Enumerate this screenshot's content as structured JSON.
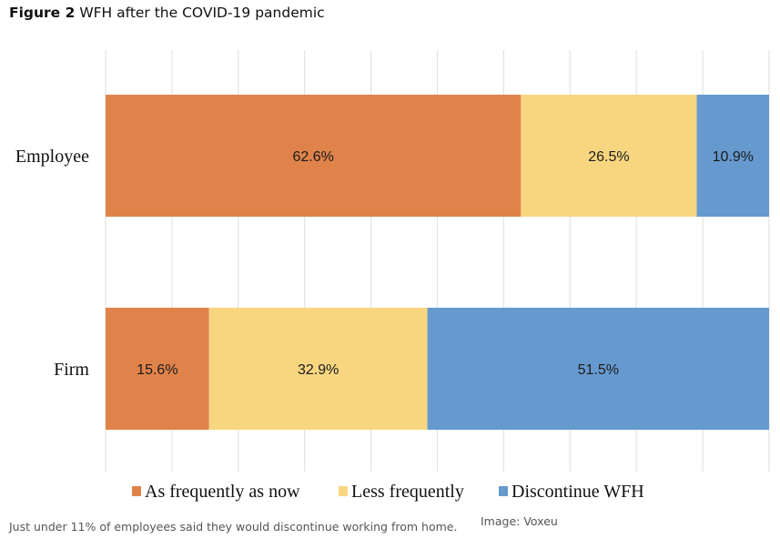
{
  "figure": {
    "label": "Figure 2",
    "title": "WFH after the COVID-19 pandemic",
    "caption": "Just under 11% of employees said they would discontinue working from home.",
    "credit": "Image: Voxeu"
  },
  "chart_data": {
    "type": "bar",
    "orientation": "horizontal",
    "stacked": true,
    "categories": [
      "Employee",
      "Firm"
    ],
    "series": [
      {
        "name": "As frequently as now",
        "values": [
          62.6,
          15.6
        ],
        "labels": [
          "62.6%",
          "15.6%"
        ],
        "color": "#E0834A"
      },
      {
        "name": "Less frequently",
        "values": [
          26.5,
          32.9
        ],
        "labels": [
          "26.5%",
          "32.9%"
        ],
        "color": "#F8D680"
      },
      {
        "name": "Discontinue WFH",
        "values": [
          10.9,
          51.5
        ],
        "labels": [
          "10.9%",
          "51.5%"
        ],
        "color": "#6699CE"
      }
    ],
    "xlim": [
      0,
      100
    ],
    "grid": true,
    "legend_position": "bottom",
    "grid_color": "#e3e3e3"
  }
}
